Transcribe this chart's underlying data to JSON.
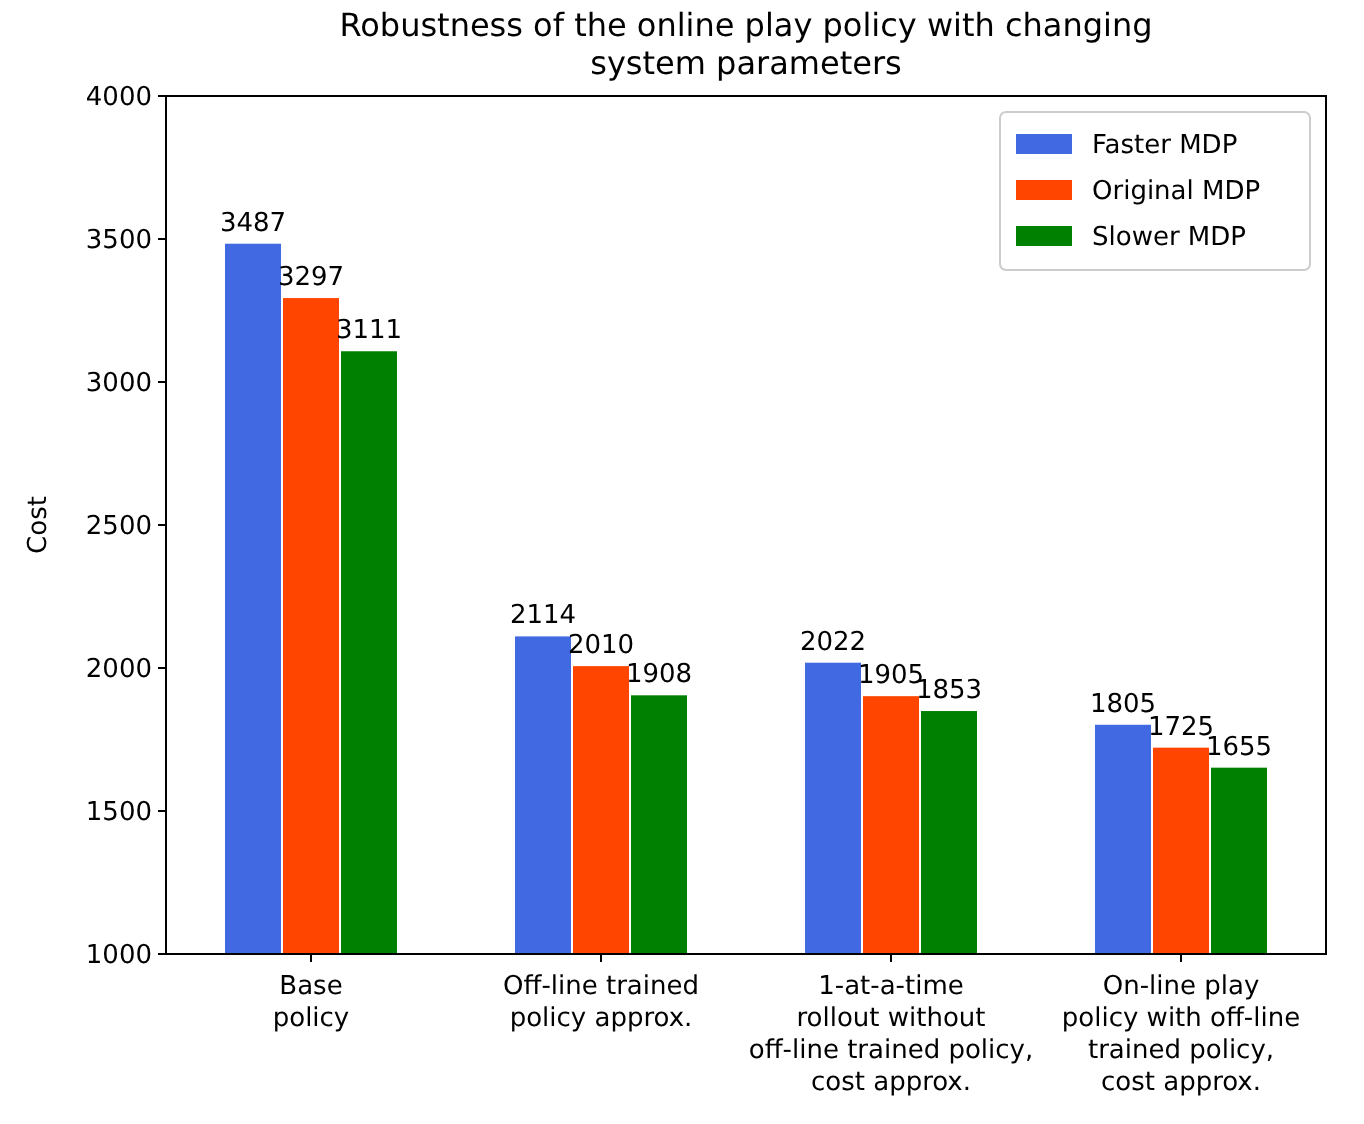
{
  "chart_data": {
    "type": "bar",
    "title": "Robustness of the online play policy with changing\nsystem parameters",
    "ylabel": "Cost",
    "categories": [
      "Base\npolicy",
      "Off-line trained\npolicy approx.",
      "1-at-a-time\nrollout without\noff-line trained policy,\ncost approx.",
      "On-line play\npolicy with off-line\ntrained policy,\ncost approx."
    ],
    "series": [
      {
        "name": "Faster MDP",
        "color": "#4169e1",
        "values": [
          3487,
          2114,
          2022,
          1805
        ]
      },
      {
        "name": "Original MDP",
        "color": "#ff4500",
        "values": [
          3297,
          2010,
          1905,
          1725
        ]
      },
      {
        "name": "Slower MDP",
        "color": "#008000",
        "values": [
          3111,
          1908,
          1853,
          1655
        ]
      }
    ],
    "ylim": [
      1000,
      4000
    ],
    "yticks": [
      1000,
      1500,
      2000,
      2500,
      3000,
      3500,
      4000
    ],
    "data_labels": true,
    "legend": "top right",
    "grid": false
  }
}
